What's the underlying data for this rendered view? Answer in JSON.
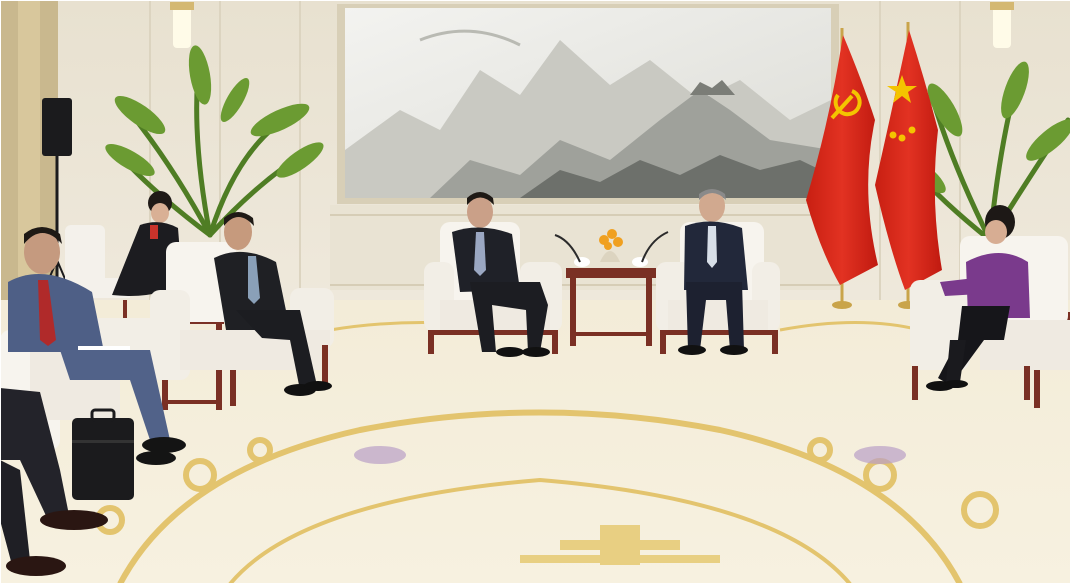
{
  "scene": {
    "kind": "photograph",
    "subject": "bilateral-meeting-room",
    "colors": {
      "wall": "#ece6d6",
      "carpet": "#f4eedb",
      "carpet_pattern": "#e3c46e",
      "carpet_accent": "#b9a0c6",
      "armchair": "#f7f4ee",
      "wood": "#7a3024",
      "suit_dark": "#23242a",
      "suit_blue": "#4e5f86",
      "flag_red": "#d92b1d",
      "flag_gold": "#f4c400",
      "plant": "#5a8a2a",
      "purple_jacket": "#7a3a8c"
    },
    "icons": [
      "flag-icon",
      "potted-plant-icon",
      "speaker-icon",
      "microphone-icon",
      "briefcase-icon"
    ]
  }
}
